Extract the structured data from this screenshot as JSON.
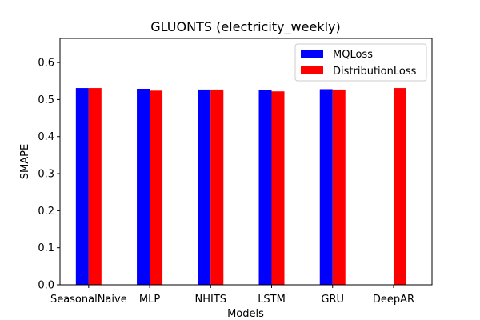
{
  "chart_data": {
    "type": "bar",
    "title": "GLUONTS (electricity_weekly)",
    "xlabel": "Models",
    "ylabel": "SMAPE",
    "categories": [
      "SeasonalNaive",
      "MLP",
      "NHITS",
      "LSTM",
      "GRU",
      "DeepAR"
    ],
    "series": [
      {
        "name": "MQLoss",
        "color": "#0000ff",
        "values": [
          0.531,
          0.529,
          0.527,
          0.526,
          0.528,
          null
        ]
      },
      {
        "name": "DistributionLoss",
        "color": "#ff0000",
        "values": [
          0.531,
          0.524,
          0.527,
          0.522,
          0.527,
          0.531
        ]
      }
    ],
    "ylim": [
      0.0,
      0.665
    ],
    "yticks": [
      0.0,
      0.1,
      0.2,
      0.3,
      0.4,
      0.5,
      0.6
    ],
    "ytick_labels": [
      "0.0",
      "0.1",
      "0.2",
      "0.3",
      "0.4",
      "0.5",
      "0.6"
    ],
    "grid": false,
    "legend_position": "top-right"
  }
}
